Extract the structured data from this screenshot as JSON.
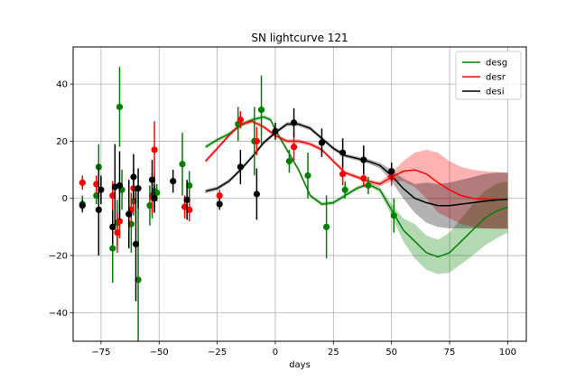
{
  "chart_data": {
    "type": "line",
    "title": "SN lightcurve 121",
    "xlabel": "days",
    "ylabel": "",
    "xlim": [
      -87,
      108
    ],
    "ylim": [
      -50,
      53
    ],
    "xticks": [
      -75,
      -50,
      -25,
      0,
      25,
      50,
      75,
      100
    ],
    "yticks": [
      -40,
      -20,
      0,
      20,
      40
    ],
    "grid": true,
    "legend_position": "top-right",
    "series": [
      {
        "name": "desg",
        "color": "#008000",
        "model": {
          "x": [
            -30,
            -25,
            -20,
            -15,
            -10,
            -5,
            -2,
            0,
            5,
            10,
            15,
            20,
            25,
            30,
            35,
            40,
            45,
            50,
            55,
            60,
            65,
            70,
            75,
            80,
            85,
            90,
            95,
            100
          ],
          "y": [
            18,
            20.5,
            22.5,
            25.5,
            27.5,
            28.5,
            27.5,
            24,
            17,
            10,
            1,
            -2,
            -1.5,
            1,
            3.5,
            5,
            3,
            -4,
            -11,
            -15,
            -19,
            -20.5,
            -19,
            -15,
            -11,
            -7,
            -4.5,
            -3
          ],
          "lower": [
            17.3,
            19.8,
            21.8,
            24.8,
            26.8,
            27.8,
            26.8,
            23.3,
            16.3,
            9.3,
            0.3,
            -2.7,
            -2.2,
            0.3,
            2.8,
            4.3,
            2,
            -6,
            -15,
            -21,
            -25,
            -26.5,
            -26,
            -23,
            -20,
            -16.5,
            -14,
            -12
          ],
          "upper": [
            18.7,
            21.2,
            23.2,
            26.2,
            28.2,
            29.2,
            28.2,
            24.7,
            17.7,
            10.7,
            1.7,
            -1.3,
            -0.8,
            1.7,
            4.2,
            5.7,
            4,
            -2,
            -7,
            -9,
            -13,
            -14.5,
            -12,
            -7,
            -2,
            2.5,
            5,
            6
          ]
        },
        "points": [
          {
            "x": -83,
            "y": -2,
            "err": 3
          },
          {
            "x": -77,
            "y": 1,
            "err": 3
          },
          {
            "x": -76,
            "y": 11,
            "err": 8
          },
          {
            "x": -70,
            "y": -17.5,
            "err": 12
          },
          {
            "x": -68,
            "y": -8.5,
            "err": 8
          },
          {
            "x": -67,
            "y": 32,
            "err": 14
          },
          {
            "x": -66,
            "y": 3,
            "err": 7
          },
          {
            "x": -62,
            "y": -9,
            "err": 10
          },
          {
            "x": -61,
            "y": -1,
            "err": 5
          },
          {
            "x": -59,
            "y": -28.5,
            "err": 25
          },
          {
            "x": -54,
            "y": -2.5,
            "err": 7
          },
          {
            "x": -53,
            "y": 1,
            "err": 8
          },
          {
            "x": -52,
            "y": 2.5,
            "err": 6
          },
          {
            "x": -51,
            "y": 2,
            "err": 3
          },
          {
            "x": -40,
            "y": 12,
            "err": 11
          },
          {
            "x": -37,
            "y": 4.5,
            "err": 5
          },
          {
            "x": -16,
            "y": 26,
            "err": 6
          },
          {
            "x": -9,
            "y": 20,
            "err": 12
          },
          {
            "x": -6,
            "y": 31,
            "err": 12
          },
          {
            "x": 6,
            "y": 13,
            "err": 4
          },
          {
            "x": 14,
            "y": 8,
            "err": 8
          },
          {
            "x": 22,
            "y": -10,
            "err": 11
          },
          {
            "x": 30,
            "y": 3,
            "err": 3
          },
          {
            "x": 40,
            "y": 4.5,
            "err": 3
          },
          {
            "x": 51,
            "y": -6,
            "err": 6
          }
        ]
      },
      {
        "name": "desr",
        "color": "#ff0000",
        "model": {
          "x": [
            -30,
            -25,
            -20,
            -15,
            -10,
            -5,
            0,
            5,
            10,
            15,
            20,
            25,
            30,
            35,
            40,
            45,
            50,
            55,
            60,
            65,
            70,
            75,
            80,
            85,
            90,
            95,
            100
          ],
          "y": [
            13,
            17.5,
            22,
            26,
            27,
            25,
            22,
            20,
            20,
            19,
            17,
            13,
            9,
            7.5,
            6,
            5,
            7.5,
            9.5,
            10,
            8.5,
            5.5,
            3,
            1,
            0,
            -0.2,
            -0.3,
            -0.4
          ],
          "lower": [
            12.3,
            16.8,
            21.3,
            25.3,
            26.3,
            24.3,
            21.3,
            19.3,
            19.3,
            18.3,
            16.3,
            12.3,
            8.3,
            6.8,
            5.3,
            4.2,
            6,
            6,
            4,
            0,
            -5,
            -7,
            -9,
            -10,
            -10.5,
            -10.7,
            -10.8
          ],
          "upper": [
            13.7,
            18.2,
            22.7,
            26.7,
            27.7,
            25.7,
            22.7,
            20.7,
            20.7,
            19.7,
            17.7,
            13.7,
            9.7,
            8.2,
            6.7,
            5.8,
            9,
            13,
            16,
            17,
            16,
            13,
            11,
            10,
            9.5,
            9.2,
            9
          ]
        },
        "points": [
          {
            "x": -83,
            "y": 5.5,
            "err": 2.5
          },
          {
            "x": -77,
            "y": 5,
            "err": 3
          },
          {
            "x": -70,
            "y": 1,
            "err": 5
          },
          {
            "x": -68,
            "y": -12,
            "err": 7
          },
          {
            "x": -67,
            "y": -8,
            "err": 6
          },
          {
            "x": -62,
            "y": -4,
            "err": 6
          },
          {
            "x": -61,
            "y": 3.5,
            "err": 7
          },
          {
            "x": -53,
            "y": 0.5,
            "err": 6
          },
          {
            "x": -52,
            "y": 17,
            "err": 10
          },
          {
            "x": -39,
            "y": -3,
            "err": 4
          },
          {
            "x": -37,
            "y": -4,
            "err": 4
          },
          {
            "x": -24,
            "y": 1,
            "err": 2
          },
          {
            "x": -15,
            "y": 27.5,
            "err": 3
          },
          {
            "x": -8,
            "y": 20,
            "err": 5
          },
          {
            "x": 8,
            "y": 18,
            "err": 5
          },
          {
            "x": 29,
            "y": 8.5,
            "err": 4
          },
          {
            "x": 38,
            "y": 7,
            "err": 3
          },
          {
            "x": 50,
            "y": 7.5,
            "err": 3
          }
        ]
      },
      {
        "name": "desi",
        "color": "#000000",
        "model": {
          "x": [
            -30,
            -25,
            -20,
            -15,
            -10,
            -5,
            0,
            5,
            10,
            15,
            20,
            25,
            30,
            35,
            40,
            45,
            50,
            55,
            60,
            65,
            70,
            75,
            80,
            85,
            90,
            95,
            100
          ],
          "y": [
            2.5,
            3.5,
            6,
            10,
            14.5,
            19.5,
            23,
            26,
            26,
            24.5,
            21,
            17.5,
            15,
            14,
            13,
            11.5,
            8,
            3.5,
            0,
            -1.5,
            -2.5,
            -2.5,
            -2,
            -1.5,
            -1,
            -0.6,
            -0.3
          ],
          "lower": [
            1.8,
            2.8,
            5.3,
            9.3,
            13.8,
            18.8,
            22.3,
            25.3,
            25.3,
            23.8,
            20.3,
            16.8,
            14.3,
            13.3,
            12.2,
            10.5,
            6,
            0,
            -5,
            -8.5,
            -10,
            -10.5,
            -10.5,
            -10.5,
            -10.5,
            -10.5,
            -10.5
          ],
          "upper": [
            3.2,
            4.2,
            6.7,
            10.7,
            15.2,
            20.2,
            23.7,
            26.7,
            26.7,
            25.2,
            21.7,
            18.2,
            15.7,
            14.7,
            13.8,
            12.5,
            10,
            7,
            5,
            5.5,
            5,
            5.5,
            6.5,
            7.5,
            8.5,
            9,
            9
          ]
        },
        "points": [
          {
            "x": -83,
            "y": -2.5,
            "err": 2
          },
          {
            "x": -76,
            "y": -4,
            "err": 16
          },
          {
            "x": -75,
            "y": 3,
            "err": 5
          },
          {
            "x": -70,
            "y": -10,
            "err": 6
          },
          {
            "x": -69,
            "y": 4,
            "err": 15
          },
          {
            "x": -67,
            "y": 4.5,
            "err": 12
          },
          {
            "x": -63,
            "y": -5.5,
            "err": 12
          },
          {
            "x": -61,
            "y": 7.5,
            "err": 8
          },
          {
            "x": -60,
            "y": -16,
            "err": 20
          },
          {
            "x": -59,
            "y": 3.5,
            "err": 7
          },
          {
            "x": -53,
            "y": 6.5,
            "err": 7
          },
          {
            "x": -52,
            "y": 0,
            "err": 5
          },
          {
            "x": -44,
            "y": 6,
            "err": 4
          },
          {
            "x": -38,
            "y": -0.5,
            "err": 7
          },
          {
            "x": -24,
            "y": -2,
            "err": 2
          },
          {
            "x": -15,
            "y": 11,
            "err": 6
          },
          {
            "x": -8,
            "y": 1.5,
            "err": 9
          },
          {
            "x": 0,
            "y": 23.5,
            "err": 3
          },
          {
            "x": 8,
            "y": 26.5,
            "err": 5
          },
          {
            "x": 20,
            "y": 19.5,
            "err": 5
          },
          {
            "x": 29,
            "y": 16,
            "err": 5
          },
          {
            "x": 38,
            "y": 13.5,
            "err": 5
          },
          {
            "x": 50,
            "y": 9.5,
            "err": 3
          }
        ]
      }
    ]
  }
}
